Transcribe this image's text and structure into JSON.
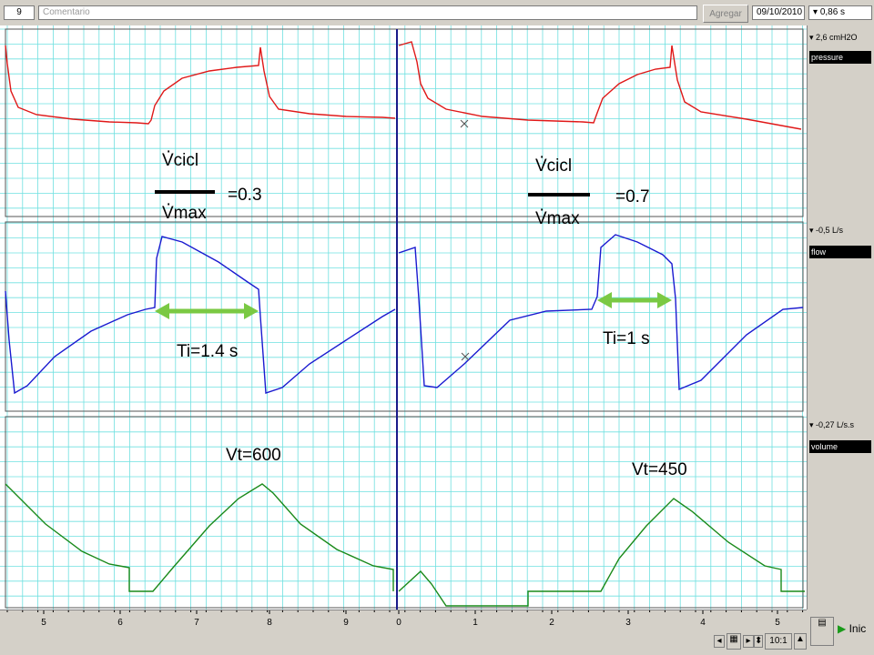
{
  "toolbar": {
    "number": "9",
    "comment_placeholder": "Comentario",
    "add_button": "Agregar",
    "date": "09/10/2010",
    "time_scale": "0,86 s"
  },
  "channels": [
    {
      "scale": "2,6 cmH2O",
      "label": "pressure",
      "color": "#e01818"
    },
    {
      "scale": "-0,5 L/s",
      "label": "flow",
      "color": "#1a1ad0"
    },
    {
      "scale": "-0,27 L/s.s",
      "label": "volume",
      "color": "#1a8a1a"
    }
  ],
  "annotations": {
    "left_ratio_num": "Vcicl",
    "left_ratio_den": "Vmax",
    "left_ratio_val": "=0.3",
    "right_ratio_num": "Vcicl",
    "right_ratio_den": "Vmax",
    "right_ratio_val": "=0.7",
    "ti_left": "Ti=1.4 s",
    "ti_right": "Ti=1 s",
    "vt_left": "Vt=600",
    "vt_right": "Vt=450"
  },
  "axis_ticks_left": [
    "5",
    "6",
    "7",
    "8",
    "9"
  ],
  "axis_ticks_right": [
    "0",
    "1",
    "2",
    "3",
    "4",
    "5"
  ],
  "bottom": {
    "zoom": "10:1",
    "start_label": "Inic"
  },
  "colors": {
    "grid": "#6fe0e0",
    "divider": "#1a1a8a",
    "arrow": "#7ac943"
  }
}
